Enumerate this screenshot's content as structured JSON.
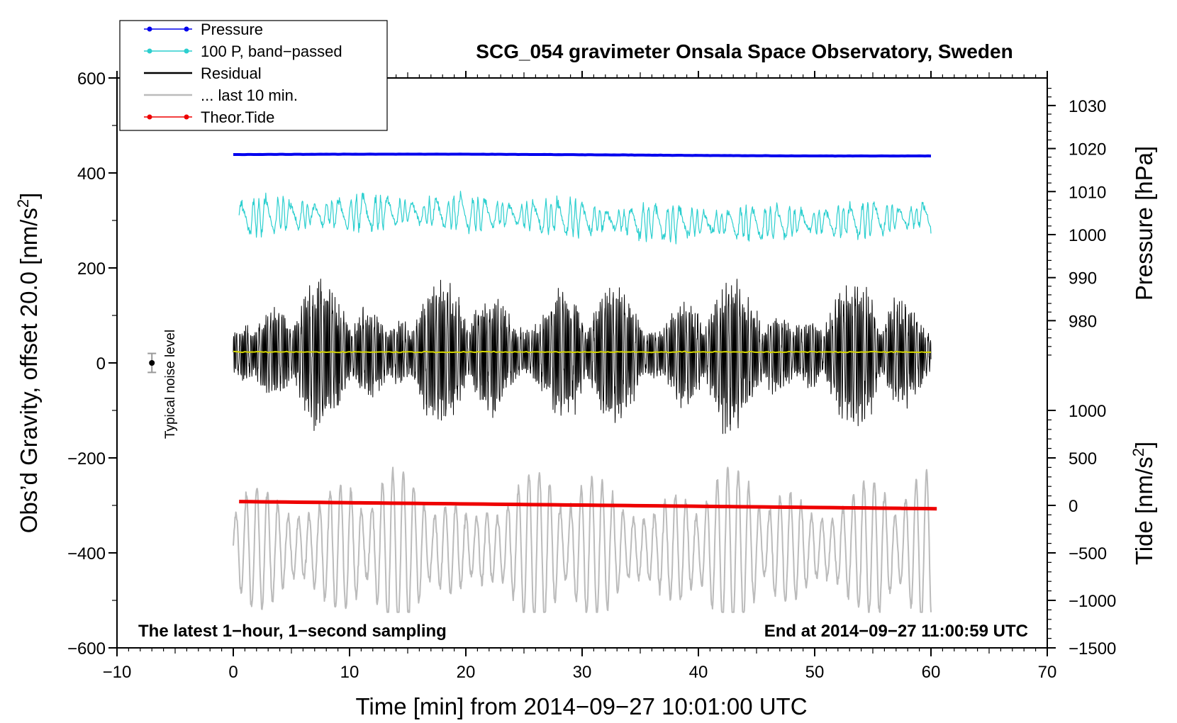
{
  "chart_data": {
    "type": "line",
    "title": "SCG_054 gravimeter Onsala Space Observatory, Sweden",
    "xlabel": "Time [min] from 2014−09−27 10:01:00 UTC",
    "ylabel_left": "Obs’d Gravity, offset 20.0 [nm/s²]",
    "ylabel_left_parts": [
      "Obs’d Gravity, offset 20.0 [nm/s",
      "2",
      "]"
    ],
    "ylabel_right_top_parts": [
      "Pressure [hPa]"
    ],
    "ylabel_right_bottom_parts": [
      "Tide [nm/s",
      "2",
      "]"
    ],
    "xlim": [
      -10,
      70
    ],
    "ylim_left": [
      -600,
      600
    ],
    "x_ticks": [
      -10,
      0,
      10,
      20,
      30,
      40,
      50,
      60,
      70
    ],
    "x_tick_labels": [
      "−10",
      "0",
      "10",
      "20",
      "30",
      "40",
      "50",
      "60",
      "70"
    ],
    "y_left_ticks": [
      -600,
      -400,
      -200,
      0,
      200,
      400,
      600
    ],
    "y_left_tick_labels": [
      "−600",
      "−400",
      "−200",
      "0",
      "200",
      "400",
      "600"
    ],
    "pressure_axis": {
      "ticks": [
        980,
        990,
        1000,
        1010,
        1020,
        1030
      ],
      "tick_labels": [
        "980",
        "990",
        "1000",
        "1010",
        "1020",
        "1030"
      ],
      "map": {
        "hpa1": 980,
        "y1": 89,
        "hpa2": 1030,
        "y2": 542
      }
    },
    "tide_axis": {
      "ticks": [
        -1500,
        -1000,
        -500,
        0,
        500,
        1000
      ],
      "tick_labels": [
        "−1500",
        "−1000",
        "−500",
        "0",
        "500",
        "1000"
      ],
      "map": {
        "tide1": -1500,
        "y1": -600,
        "tide2": 1000,
        "y2": -100
      }
    },
    "legend": [
      {
        "label": "Pressure",
        "color": "#0000ee",
        "marker": true
      },
      {
        "label": "100 P, band−passed",
        "color": "#2ccfcf",
        "marker": true
      },
      {
        "label": "Residual",
        "color": "#000000",
        "marker": false
      },
      {
        "label": "... last 10 min.",
        "color": "#bbbbbb",
        "marker": false
      },
      {
        "label": "Theor.Tide",
        "color": "#ee0000",
        "marker": true
      }
    ],
    "series": [
      {
        "name": "Pressure",
        "color": "#0000ee",
        "x_range": [
          0,
          60
        ],
        "hpa_start": 1018.6,
        "hpa_end": 1018.4,
        "approx_value_left_axis": 450
      },
      {
        "name": "100 P, band-passed",
        "color": "#2ccfcf",
        "x_range": [
          0.5,
          60
        ],
        "center": 305,
        "amplitude": 45
      },
      {
        "name": "Residual",
        "color": "#000000",
        "x_range": [
          0,
          60
        ],
        "center": 20,
        "amplitude_range": [
          60,
          220
        ]
      },
      {
        "name": "... last 10 min.",
        "color": "#bbbbbb",
        "x_range": [
          0,
          60
        ],
        "center": -390,
        "amplitude": 170,
        "period_min": 0.9
      },
      {
        "name": "Theor.Tide",
        "color": "#ee0000",
        "x_range": [
          0.5,
          60.5
        ],
        "left_axis_start": -292,
        "left_axis_end": -307
      },
      {
        "name": "Residual mean",
        "color": "#d4d400",
        "x_range": [
          0,
          60
        ],
        "value": 23
      }
    ],
    "noise_bar": {
      "x": -7,
      "y": 0,
      "half_height": 20,
      "label": "Typical noise level"
    },
    "annotations": {
      "bottom_left": "The latest 1−hour, 1−second sampling",
      "bottom_right": "End at 2014−09−27 11:00:59 UTC"
    }
  }
}
